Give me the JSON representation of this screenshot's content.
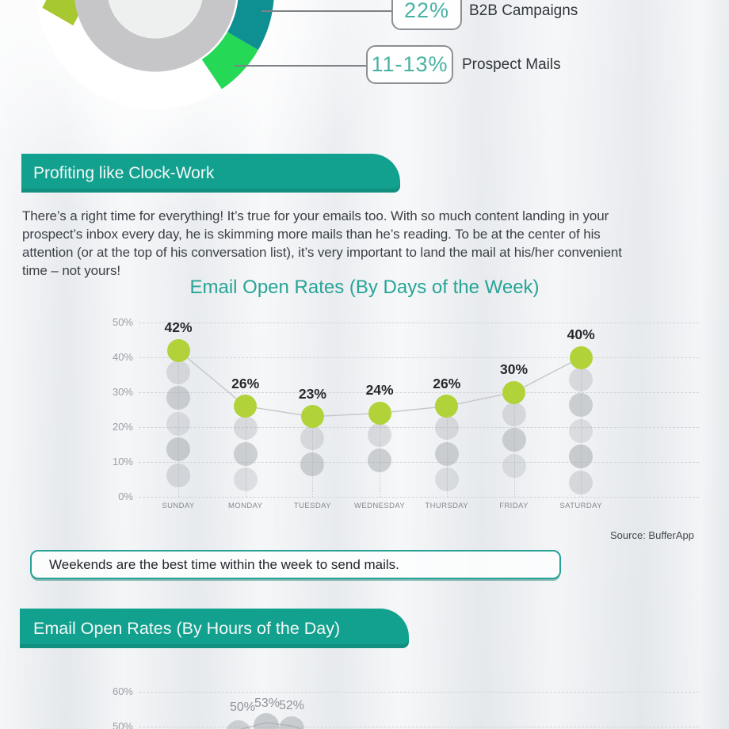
{
  "colors": {
    "banner_teal": "#13a18f",
    "title_teal": "#27a497",
    "donut_teal": "#0e8f92",
    "donut_green": "#25d956",
    "donut_lime": "#a8c832",
    "donut_gray_ring": "#c6c6c9",
    "dot_green": "#b1d239",
    "gray_dot": "#9aa0a5",
    "note_border": "#27a095",
    "callout_value_teal": "#49b2a3"
  },
  "donut": {
    "callouts": [
      {
        "value": "22%",
        "label": "B2B Campaigns"
      },
      {
        "value": "11-13%",
        "label": "Prospect Mails"
      }
    ]
  },
  "clockwork": {
    "banner": "Profiting like Clock-Work",
    "paragraph": "There’s a right time for everything! It’s true for your emails too. With so much content landing in your\nprospect’s inbox every day, he is skimming more mails than he’s reading. To be at the center of his\nattention (or at the top of his conversation list), it’s very important to land the mail at his/her convenient\ntime – not yours!"
  },
  "weekly_note": "Weekends are the best time within the week to send mails.",
  "source": "Source: BufferApp",
  "hours_banner": "Email Open Rates (By Hours of the Day)",
  "chart_data": [
    {
      "type": "scatter",
      "title": "Email Open Rates (By Days of the Week)",
      "categories": [
        "SUNDAY",
        "MONDAY",
        "TUESDAY",
        "WEDNESDAY",
        "THURSDAY",
        "FRIDAY",
        "SATURDAY"
      ],
      "values": [
        42,
        26,
        23,
        24,
        26,
        30,
        40
      ],
      "value_labels": [
        "42%",
        "26%",
        "23%",
        "24%",
        "26%",
        "30%",
        "40%"
      ],
      "ylabel": "",
      "yticks": [
        "0%",
        "10%",
        "20%",
        "30%",
        "40%",
        "50%"
      ],
      "ylim": [
        0,
        50
      ],
      "grid": "dashed-horizontal",
      "legend": "none"
    },
    {
      "type": "scatter",
      "title": "Email Open Rates (By Hours of the Day)",
      "visible_yticks": [
        "60%",
        "50%"
      ],
      "visible_value_labels": [
        "50%",
        "53%",
        "52%"
      ],
      "visible_values": [
        50,
        53,
        52
      ],
      "grid": "dashed-horizontal",
      "legend": "none"
    }
  ]
}
